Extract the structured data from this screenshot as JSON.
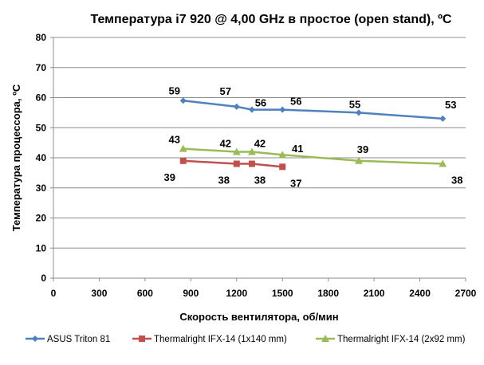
{
  "chart_data": {
    "type": "line",
    "title": "Температура i7 920 @ 4,00 GHz в простое (open stand), ºС",
    "xlabel": "Скорость вентилятора, об/мин",
    "ylabel": "Температура процессора, ºС",
    "xlim": [
      0,
      2700
    ],
    "ylim": [
      0,
      80
    ],
    "xticks": [
      "0",
      "300",
      "600",
      "900",
      "1200",
      "1500",
      "1800",
      "2100",
      "2400",
      "2700"
    ],
    "yticks": [
      "0",
      "10",
      "20",
      "30",
      "40",
      "50",
      "60",
      "70",
      "80"
    ],
    "grid": "horizontal",
    "legend": "bottom",
    "series": [
      {
        "name": "ASUS Triton 81",
        "color": "#4F81BD",
        "marker": "diamond",
        "x": [
          850,
          1200,
          1300,
          1500,
          2000,
          2550
        ],
        "values": [
          59,
          57,
          56,
          56,
          55,
          53
        ]
      },
      {
        "name": "Thermalright IFX-14 (1x140 mm)",
        "color": "#C0504D",
        "marker": "square",
        "x": [
          850,
          1200,
          1300,
          1500
        ],
        "values": [
          39,
          38,
          38,
          37
        ]
      },
      {
        "name": "Thermalright IFX-14 (2x92 mm)",
        "color": "#9BBB59",
        "marker": "triangle",
        "x": [
          850,
          1200,
          1300,
          1500,
          2000,
          2550
        ],
        "values": [
          43,
          42,
          42,
          41,
          39,
          38
        ]
      }
    ]
  }
}
